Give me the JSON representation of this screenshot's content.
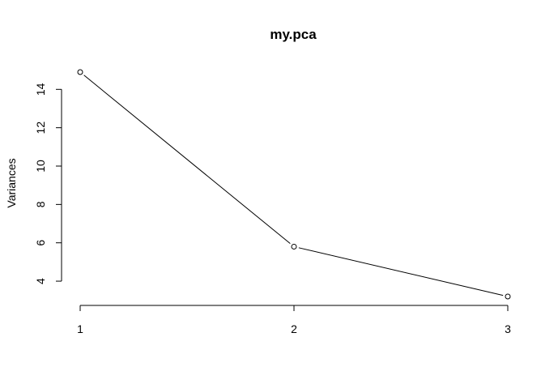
{
  "chart_data": {
    "type": "line",
    "title": "my.pca",
    "xlabel": "",
    "ylabel": "Variances",
    "x": [
      1,
      2,
      3
    ],
    "series": [
      {
        "values": [
          14.9,
          5.8,
          3.2
        ]
      }
    ],
    "xlim": [
      1,
      3
    ],
    "ylim": [
      3.2,
      14.9
    ],
    "x_ticks": [
      "1",
      "2",
      "3"
    ],
    "y_ticks": [
      "4",
      "6",
      "8",
      "10",
      "12",
      "14"
    ],
    "grid": false,
    "point_marker": "open-circle",
    "colors": {
      "line": "#000000",
      "axis": "#000000",
      "background": "#ffffff"
    }
  }
}
